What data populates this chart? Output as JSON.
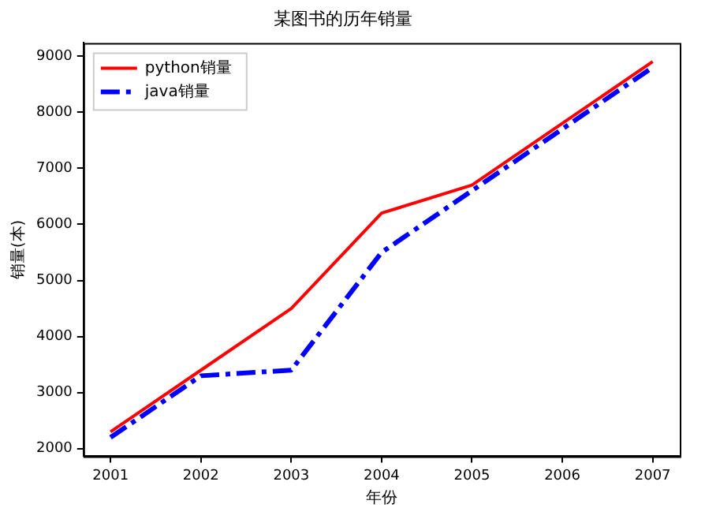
{
  "chart_data": {
    "type": "line",
    "title": "某图书的历年销量",
    "xlabel": "年份",
    "ylabel": "销量(本)",
    "x": [
      2001,
      2002,
      2003,
      2004,
      2005,
      2006,
      2007
    ],
    "series": [
      {
        "name": "python销量",
        "color": "#ff0000",
        "values": [
          2300,
          3400,
          4500,
          6200,
          6700,
          7800,
          8900
        ],
        "line_style": "solid"
      },
      {
        "name": "java销量",
        "color": "#0000ff",
        "values": [
          2200,
          3300,
          3400,
          5500,
          6600,
          7700,
          8800
        ],
        "line_style": "dashed"
      }
    ],
    "xlim": [
      2000.7,
      2007.3
    ],
    "xticks": [
      2001,
      2002,
      2003,
      2004,
      2005,
      2006,
      2007
    ],
    "ylim": [
      1865,
      9235
    ],
    "yticks": [
      2000,
      3000,
      4000,
      5000,
      6000,
      7000,
      8000,
      9000
    ],
    "grid": false,
    "legend": "top left",
    "marker": "none"
  }
}
